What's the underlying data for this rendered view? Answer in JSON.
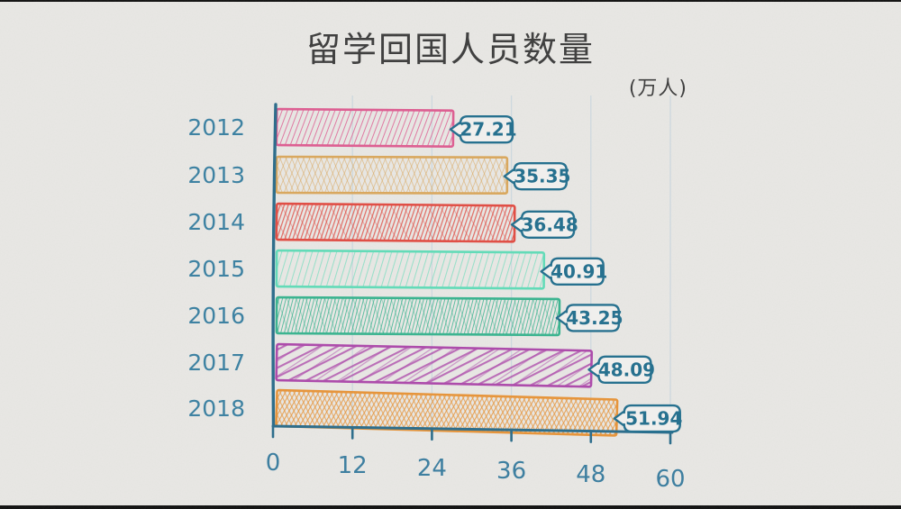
{
  "title": "留学回国人员数量",
  "unit_label": "(万人)",
  "chart_data": {
    "type": "bar",
    "orientation": "horizontal",
    "style": "hand-drawn-hatched",
    "title": "留学回国人员数量",
    "unit": "(万人)",
    "categories": [
      "2012",
      "2013",
      "2014",
      "2015",
      "2016",
      "2017",
      "2018"
    ],
    "values": [
      27.21,
      35.35,
      36.48,
      40.91,
      43.25,
      48.09,
      51.94
    ],
    "value_labels": [
      "27.21",
      "35.35",
      "36.48",
      "40.91",
      "43.25",
      "48.09",
      "51.94"
    ],
    "x_ticks": [
      0,
      12,
      24,
      36,
      48,
      60
    ],
    "x_tick_labels": [
      "0",
      "12",
      "24",
      "36",
      "48",
      "60"
    ],
    "xlim": [
      0,
      60
    ],
    "grid": "vertical-faint",
    "legend": false,
    "bar_colors": [
      "#dd5f92",
      "#d9a85f",
      "#e04f46",
      "#63dbb8",
      "#3cb490",
      "#ad4cab",
      "#e6953c"
    ],
    "hatch_styles": [
      "diagonal",
      "crosshatch-fine",
      "diagonal-dense",
      "diagonal-light",
      "diagonal-dense",
      "stripes-wide",
      "crosshatch-dense"
    ],
    "axis_color": "#2e6e8c",
    "tick_label_color": "#3e7fa0",
    "category_label_color": "#3e82a2",
    "callout_color": "#27718f",
    "callout_fill": "#f1f0ee",
    "title_color": "#3c3c3c",
    "background_color": "#e9e8e5"
  }
}
